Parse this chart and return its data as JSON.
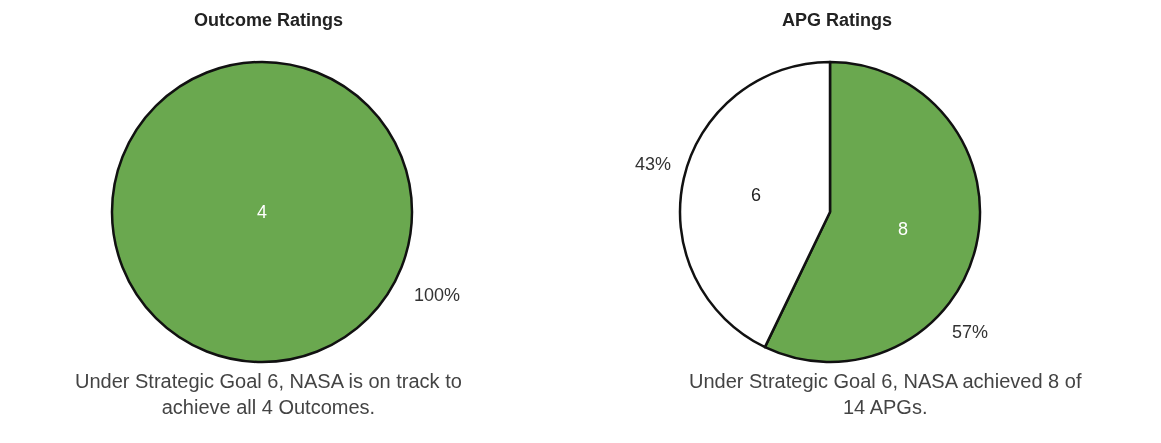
{
  "chart_data": [
    {
      "type": "pie",
      "title": "Outcome Ratings",
      "categories": [
        null
      ],
      "values": [
        4
      ],
      "colors": [
        "#6aa84f"
      ],
      "data_labels": true,
      "annotations": [
        "100%",
        "Under Strategic Goal 6, NASA is on track to achieve all 4 Outcomes."
      ]
    },
    {
      "type": "pie",
      "title": "APG Ratings",
      "categories": [
        null,
        null
      ],
      "values": [
        8,
        6
      ],
      "colors": [
        "#6aa84f",
        "#ffffff"
      ],
      "data_labels": true,
      "annotations": [
        "57%",
        "43%",
        "Under Strategic Goal 6, NASA achieved 8 of 14 APGs."
      ]
    }
  ]
}
